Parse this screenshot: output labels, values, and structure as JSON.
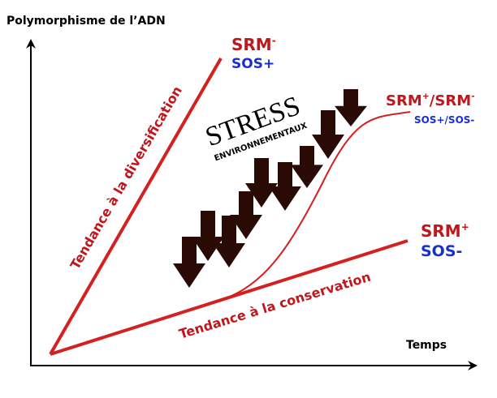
{
  "axes": {
    "y_label": "Polymorphisme de l’ADN",
    "x_label": "Temps"
  },
  "curves": [
    {
      "label": [
        {
          "text": "SRM"
        },
        {
          "sup": "-"
        }
      ],
      "sublabel": "SOS+"
    },
    {
      "label": [
        {
          "text": "SRM"
        },
        {
          "sup": "+"
        },
        {
          "text": "/SRM"
        },
        {
          "sup": "-"
        }
      ],
      "sublabel": "SOS+/SOS-"
    },
    {
      "label": [
        {
          "text": "SRM"
        },
        {
          "sup": "+"
        }
      ],
      "sublabel": "SOS-"
    }
  ],
  "stress": {
    "title": "STRESS",
    "subtitle": "ENVIRONNEMENTAUX"
  },
  "tendencies": {
    "diversification": "Tendance à la diversification",
    "conservation": "Tendance à la conservation"
  }
}
